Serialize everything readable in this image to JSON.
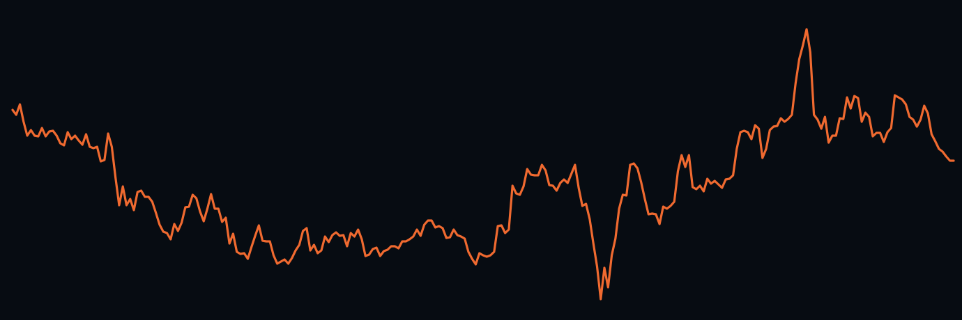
{
  "chart_data": {
    "type": "line",
    "color": "#f06a30",
    "background": "#070c12",
    "ylim": [
      0,
      460
    ],
    "values": [
      302,
      295,
      310,
      285,
      265,
      273,
      265,
      264,
      276,
      264,
      271,
      272,
      265,
      254,
      251,
      270,
      260,
      265,
      258,
      252,
      267,
      249,
      247,
      249,
      228,
      230,
      268,
      249,
      205,
      165,
      192,
      165,
      174,
      158,
      184,
      186,
      177,
      177,
      170,
      154,
      137,
      127,
      125,
      116,
      138,
      128,
      140,
      162,
      163,
      180,
      175,
      156,
      142,
      160,
      181,
      160,
      160,
      141,
      147,
      110,
      124,
      98,
      95,
      96,
      88,
      105,
      121,
      136,
      114,
      113,
      113,
      93,
      81,
      84,
      87,
      81,
      89,
      100,
      108,
      128,
      132,
      100,
      108,
      96,
      100,
      120,
      112,
      122,
      126,
      121,
      122,
      106,
      125,
      120,
      130,
      116,
      92,
      94,
      102,
      104,
      92,
      99,
      101,
      106,
      106,
      103,
      113,
      113,
      116,
      120,
      130,
      121,
      137,
      143,
      143,
      133,
      135,
      132,
      118,
      119,
      130,
      122,
      120,
      117,
      98,
      88,
      80,
      96,
      93,
      91,
      93,
      98,
      135,
      136,
      125,
      130,
      193,
      182,
      180,
      192,
      217,
      209,
      208,
      208,
      223,
      215,
      194,
      193,
      186,
      197,
      202,
      197,
      210,
      223,
      190,
      164,
      167,
      145,
      110,
      77,
      30,
      75,
      47,
      93,
      117,
      160,
      180,
      179,
      223,
      225,
      218,
      198,
      174,
      152,
      153,
      152,
      138,
      163,
      160,
      164,
      170,
      214,
      237,
      220,
      237,
      191,
      188,
      193,
      185,
      203,
      196,
      200,
      195,
      190,
      202,
      203,
      208,
      246,
      270,
      272,
      270,
      260,
      280,
      275,
      233,
      246,
      273,
      278,
      279,
      290,
      285,
      289,
      295,
      340,
      375,
      395,
      418,
      385,
      295,
      288,
      275,
      292,
      255,
      265,
      265,
      290,
      289,
      320,
      304,
      322,
      319,
      285,
      298,
      292,
      264,
      269,
      269,
      256,
      270,
      276,
      323,
      320,
      317,
      310,
      292,
      288,
      278,
      288,
      308,
      297,
      267,
      257,
      246,
      242,
      235,
      229,
      229
    ]
  }
}
